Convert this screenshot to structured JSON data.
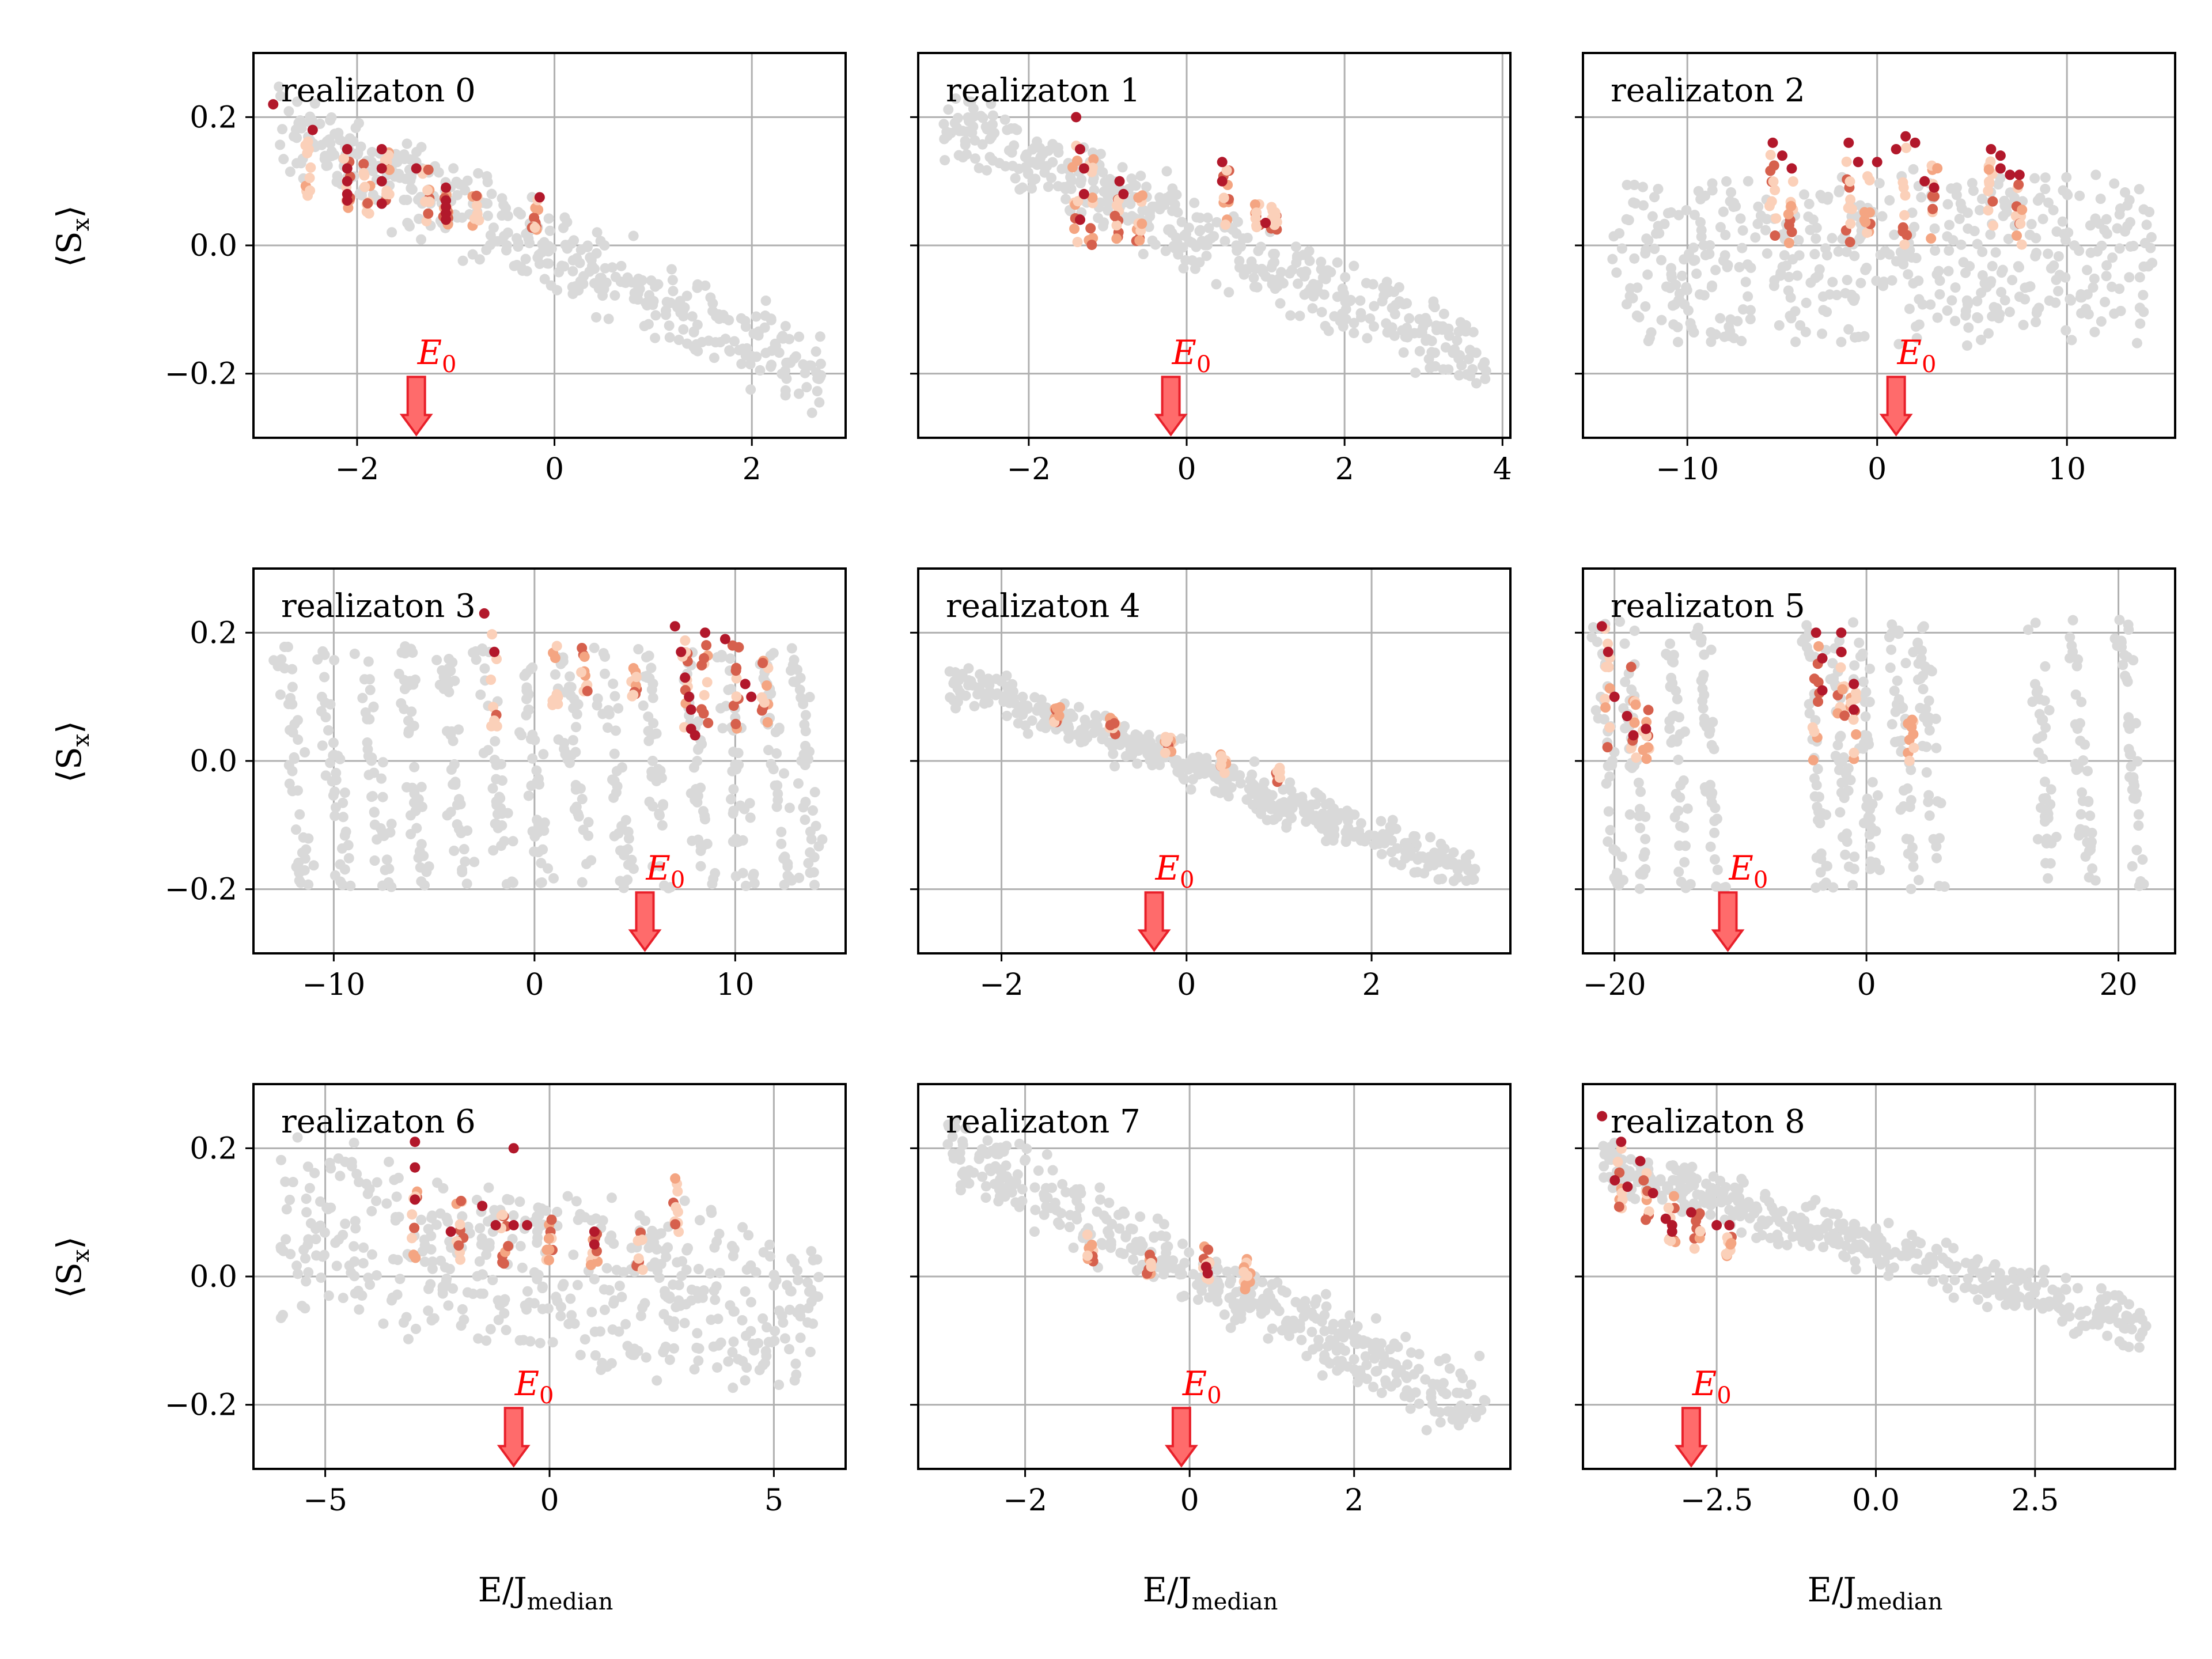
{
  "figure": {
    "xlabel": "E/J",
    "xlabel_sub": "median",
    "ylabel": "⟨S",
    "ylabel_sub": "x",
    "ylabel_close": "⟩",
    "marker_label": "E",
    "marker_label_sub": "0"
  },
  "colors": {
    "grid": "#b0b0b0",
    "background_points": "#d9d9d9",
    "light_points": "#fbd0b9",
    "mid_points": "#f4a582",
    "strong_points": "#d6604d",
    "dark_points": "#b2182b",
    "arrow_fill": "#ff6b6b",
    "arrow_edge": "#e8202a",
    "e0_text": "#ff0000"
  },
  "chart_data": [
    {
      "type": "scatter",
      "title": "realizaton 0",
      "xlim": [
        -3.05,
        2.95
      ],
      "ylim": [
        -0.3,
        0.3
      ],
      "xticks": [
        -2,
        0,
        2
      ],
      "xtick_labels": [
        "−2",
        "0",
        "2"
      ],
      "yticks": [
        -0.2,
        0.0,
        0.2
      ],
      "ytick_labels": [
        "−0.2",
        "0.0",
        "0.2"
      ],
      "e0": -1.4,
      "cloud": {
        "kind": "band",
        "x0": -2.8,
        "x1": 2.7,
        "y0": 0.19,
        "y1": -0.2,
        "width": 0.06
      },
      "highlight_columns": [
        {
          "x": -2.5,
          "ymin": 0.06,
          "ymax": 0.18
        },
        {
          "x": -2.1,
          "ymin": 0.04,
          "ymax": 0.15
        },
        {
          "x": -1.9,
          "ymin": 0.04,
          "ymax": 0.15
        },
        {
          "x": -1.7,
          "ymin": 0.03,
          "ymax": 0.15
        },
        {
          "x": -1.3,
          "ymin": 0.03,
          "ymax": 0.12
        },
        {
          "x": -1.1,
          "ymin": 0.03,
          "ymax": 0.1
        },
        {
          "x": -0.8,
          "ymin": 0.03,
          "ymax": 0.09
        },
        {
          "x": -0.2,
          "ymin": 0.02,
          "ymax": 0.08
        }
      ],
      "dark_points": [
        [
          -2.85,
          0.22
        ],
        [
          -2.45,
          0.18
        ],
        [
          -2.1,
          0.15
        ],
        [
          -2.1,
          0.12
        ],
        [
          -2.1,
          0.1
        ],
        [
          -2.1,
          0.08
        ],
        [
          -2.1,
          0.07
        ],
        [
          -1.75,
          0.15
        ],
        [
          -1.75,
          0.12
        ],
        [
          -1.75,
          0.1
        ],
        [
          -1.75,
          0.065
        ],
        [
          -1.4,
          0.12
        ],
        [
          -1.1,
          0.09
        ],
        [
          -1.1,
          0.07
        ],
        [
          -1.1,
          0.06
        ],
        [
          -1.1,
          0.05
        ],
        [
          -1.1,
          0.04
        ],
        [
          -0.15,
          0.075
        ]
      ]
    },
    {
      "type": "scatter",
      "title": "realizaton 1",
      "xlim": [
        -3.4,
        4.1
      ],
      "ylim": [
        -0.3,
        0.3
      ],
      "xticks": [
        -2,
        0,
        2,
        4
      ],
      "xtick_labels": [
        "−2",
        "0",
        "2",
        "4"
      ],
      "yticks": [
        -0.2,
        0.0,
        0.2
      ],
      "ytick_labels": [
        "",
        "",
        ""
      ],
      "e0": -0.2,
      "cloud": {
        "kind": "band",
        "x0": -3.1,
        "x1": 3.8,
        "y0": 0.19,
        "y1": -0.18,
        "width": 0.055
      },
      "highlight_columns": [
        {
          "x": -1.4,
          "ymin": 0.0,
          "ymax": 0.19
        },
        {
          "x": -1.2,
          "ymin": 0.0,
          "ymax": 0.14
        },
        {
          "x": -0.9,
          "ymin": 0.0,
          "ymax": 0.1
        },
        {
          "x": -0.6,
          "ymin": 0.0,
          "ymax": 0.08
        },
        {
          "x": 0.5,
          "ymin": 0.02,
          "ymax": 0.13
        },
        {
          "x": 0.9,
          "ymin": 0.02,
          "ymax": 0.07
        },
        {
          "x": 1.1,
          "ymin": 0.02,
          "ymax": 0.06
        }
      ],
      "dark_points": [
        [
          -1.4,
          0.2
        ],
        [
          -1.35,
          0.15
        ],
        [
          -1.3,
          0.12
        ],
        [
          -1.3,
          0.08
        ],
        [
          -1.35,
          0.04
        ],
        [
          -0.85,
          0.1
        ],
        [
          -0.8,
          0.08
        ],
        [
          0.45,
          0.13
        ],
        [
          0.45,
          0.1
        ],
        [
          1.0,
          0.035
        ]
      ]
    },
    {
      "type": "scatter",
      "title": "realizaton 2",
      "xlim": [
        -15.5,
        15.7
      ],
      "ylim": [
        -0.3,
        0.3
      ],
      "xticks": [
        -10,
        0,
        10
      ],
      "xtick_labels": [
        "−10",
        "0",
        "10"
      ],
      "yticks": [
        -0.2,
        0.0,
        0.2
      ],
      "ytick_labels": [
        "",
        "",
        ""
      ],
      "e0": 1.0,
      "cloud": {
        "kind": "blob",
        "x0": -14.0,
        "x1": 14.5,
        "ymin": -0.17,
        "ymax": 0.13
      },
      "highlight_columns": [
        {
          "x": -5.5,
          "ymin": 0.0,
          "ymax": 0.15
        },
        {
          "x": -4.5,
          "ymin": 0.0,
          "ymax": 0.12
        },
        {
          "x": -1.5,
          "ymin": 0.0,
          "ymax": 0.15
        },
        {
          "x": -0.5,
          "ymin": 0.0,
          "ymax": 0.12
        },
        {
          "x": 1.5,
          "ymin": 0.0,
          "ymax": 0.16
        },
        {
          "x": 3.0,
          "ymin": 0.0,
          "ymax": 0.13
        },
        {
          "x": 6.0,
          "ymin": 0.0,
          "ymax": 0.14
        },
        {
          "x": 7.5,
          "ymin": 0.0,
          "ymax": 0.12
        }
      ],
      "dark_points": [
        [
          -5.5,
          0.16
        ],
        [
          -5.0,
          0.14
        ],
        [
          -4.5,
          0.12
        ],
        [
          -1.5,
          0.16
        ],
        [
          -1.0,
          0.13
        ],
        [
          0.0,
          0.13
        ],
        [
          1.0,
          0.15
        ],
        [
          1.5,
          0.17
        ],
        [
          2.0,
          0.16
        ],
        [
          2.5,
          0.1
        ],
        [
          3.0,
          0.09
        ],
        [
          6.0,
          0.15
        ],
        [
          6.5,
          0.14
        ],
        [
          6.5,
          0.12
        ],
        [
          7.0,
          0.11
        ],
        [
          7.5,
          0.11
        ]
      ]
    },
    {
      "type": "scatter",
      "title": "realizaton 3",
      "xlim": [
        -14.0,
        15.5
      ],
      "ylim": [
        -0.3,
        0.3
      ],
      "xticks": [
        -10,
        0,
        10
      ],
      "xtick_labels": [
        "−10",
        "0",
        "10"
      ],
      "yticks": [
        -0.2,
        0.0,
        0.2
      ],
      "ytick_labels": [
        "−0.2",
        "0.0",
        "0.2"
      ],
      "e0": 5.5,
      "cloud": {
        "kind": "stripes",
        "centers": [
          -12.0,
          -10.0,
          -8.0,
          -6.0,
          -4.0,
          -2.0,
          0.0,
          2.0,
          4.0,
          6.0,
          8.0,
          10.0,
          12.0,
          13.5
        ],
        "ytop": 0.18,
        "ybot": -0.2,
        "tilt": 1.2,
        "width": 0.7
      },
      "highlight_columns": [
        {
          "x": -2.0,
          "ymin": 0.05,
          "ymax": 0.2
        },
        {
          "x": 1.0,
          "ymin": 0.08,
          "ymax": 0.18
        },
        {
          "x": 2.5,
          "ymin": 0.1,
          "ymax": 0.18
        },
        {
          "x": 5.0,
          "ymin": 0.1,
          "ymax": 0.15
        },
        {
          "x": 7.5,
          "ymin": 0.02,
          "ymax": 0.2
        },
        {
          "x": 8.5,
          "ymin": 0.05,
          "ymax": 0.2
        },
        {
          "x": 10.0,
          "ymin": 0.05,
          "ymax": 0.18
        },
        {
          "x": 11.5,
          "ymin": 0.06,
          "ymax": 0.16
        }
      ],
      "dark_points": [
        [
          -2.5,
          0.23
        ],
        [
          -2.0,
          0.17
        ],
        [
          7.0,
          0.21
        ],
        [
          7.3,
          0.17
        ],
        [
          7.5,
          0.13
        ],
        [
          7.7,
          0.1
        ],
        [
          7.8,
          0.08
        ],
        [
          7.8,
          0.05
        ],
        [
          8.0,
          0.04
        ],
        [
          8.5,
          0.2
        ],
        [
          9.5,
          0.19
        ],
        [
          10.5,
          0.12
        ],
        [
          10.8,
          0.1
        ]
      ]
    },
    {
      "type": "scatter",
      "title": "realizaton 4",
      "xlim": [
        -2.9,
        3.5
      ],
      "ylim": [
        -0.3,
        0.3
      ],
      "xticks": [
        -2,
        0,
        2
      ],
      "xtick_labels": [
        "−2",
        "0",
        "2"
      ],
      "yticks": [
        -0.2,
        0.0,
        0.2
      ],
      "ytick_labels": [
        "",
        "",
        ""
      ],
      "e0": -0.35,
      "cloud": {
        "kind": "band",
        "x0": -2.6,
        "x1": 3.2,
        "y0": 0.13,
        "y1": -0.18,
        "width": 0.03
      },
      "highlight_columns": [
        {
          "x": -1.4,
          "ymin": 0.06,
          "ymax": 0.09
        },
        {
          "x": -0.8,
          "ymin": 0.04,
          "ymax": 0.07
        },
        {
          "x": -0.2,
          "ymin": 0.01,
          "ymax": 0.04
        },
        {
          "x": 0.4,
          "ymin": -0.02,
          "ymax": 0.01
        },
        {
          "x": 1.0,
          "ymin": -0.04,
          "ymax": -0.01
        }
      ],
      "dark_points": []
    },
    {
      "type": "scatter",
      "title": "realizaton 5",
      "xlim": [
        -22.5,
        24.5
      ],
      "ylim": [
        -0.3,
        0.3
      ],
      "xticks": [
        -20,
        0,
        20
      ],
      "xtick_labels": [
        "−20",
        "0",
        "20"
      ],
      "yticks": [
        -0.2,
        0.0,
        0.2
      ],
      "ytick_labels": [
        "",
        "",
        ""
      ],
      "e0": -11.0,
      "cloud": {
        "kind": "stripes",
        "centers": [
          -20.5,
          -18.5,
          -15.0,
          -12.5,
          -4.0,
          -2.0,
          0.0,
          3.0,
          5.0,
          14.0,
          17.0,
          21.0
        ],
        "ytop": 0.22,
        "ybot": -0.2,
        "tilt": 1.5,
        "width": 0.9
      },
      "highlight_columns": [
        {
          "x": -20.5,
          "ymin": 0.0,
          "ymax": 0.21
        },
        {
          "x": -18.5,
          "ymin": 0.0,
          "ymax": 0.15
        },
        {
          "x": -17.5,
          "ymin": 0.0,
          "ymax": 0.08
        },
        {
          "x": -4.0,
          "ymin": 0.0,
          "ymax": 0.2
        },
        {
          "x": -2.0,
          "ymin": 0.0,
          "ymax": 0.17
        },
        {
          "x": -1.0,
          "ymin": 0.0,
          "ymax": 0.13
        },
        {
          "x": 3.5,
          "ymin": 0.0,
          "ymax": 0.1
        }
      ],
      "dark_points": [
        [
          -21.0,
          0.21
        ],
        [
          -20.5,
          0.17
        ],
        [
          -20.0,
          0.1
        ],
        [
          -19.0,
          0.07
        ],
        [
          -18.5,
          0.04
        ],
        [
          -17.5,
          0.05
        ],
        [
          -4.0,
          0.2
        ],
        [
          -3.5,
          0.16
        ],
        [
          -3.5,
          0.11
        ],
        [
          -2.0,
          0.2
        ],
        [
          -2.0,
          0.17
        ],
        [
          -1.0,
          0.12
        ],
        [
          -1.0,
          0.08
        ]
      ]
    },
    {
      "type": "scatter",
      "title": "realizaton 6",
      "xlim": [
        -6.6,
        6.6
      ],
      "ylim": [
        -0.3,
        0.3
      ],
      "xticks": [
        -5,
        0,
        5
      ],
      "xtick_labels": [
        "−5",
        "0",
        "5"
      ],
      "yticks": [
        -0.2,
        0.0,
        0.2
      ],
      "ytick_labels": [
        "−0.2",
        "0.0",
        "0.2"
      ],
      "e0": -0.8,
      "cloud": {
        "kind": "blob",
        "x0": -6.0,
        "x1": 6.0,
        "ymin": -0.14,
        "ymax": 0.16,
        "slope": -0.012
      },
      "highlight_columns": [
        {
          "x": -3.0,
          "ymin": 0.02,
          "ymax": 0.14
        },
        {
          "x": -2.0,
          "ymin": 0.02,
          "ymax": 0.12
        },
        {
          "x": -1.0,
          "ymin": 0.02,
          "ymax": 0.1
        },
        {
          "x": 0.0,
          "ymin": 0.01,
          "ymax": 0.09
        },
        {
          "x": 1.0,
          "ymin": 0.01,
          "ymax": 0.08
        },
        {
          "x": 2.0,
          "ymin": 0.01,
          "ymax": 0.07
        },
        {
          "x": 2.8,
          "ymin": 0.05,
          "ymax": 0.18
        }
      ],
      "dark_points": [
        [
          -3.0,
          0.21
        ],
        [
          -3.0,
          0.17
        ],
        [
          -3.0,
          0.12
        ],
        [
          -2.2,
          0.07
        ],
        [
          -1.5,
          0.11
        ],
        [
          -1.2,
          0.08
        ],
        [
          -0.8,
          0.2
        ],
        [
          -0.8,
          0.08
        ],
        [
          -0.5,
          0.08
        ],
        [
          1.0,
          0.07
        ],
        [
          1.0,
          0.05
        ]
      ]
    },
    {
      "type": "scatter",
      "title": "realizaton 7",
      "xlim": [
        -3.3,
        3.9
      ],
      "ylim": [
        -0.3,
        0.3
      ],
      "xticks": [
        -2,
        0,
        2
      ],
      "xtick_labels": [
        "−2",
        "0",
        "2"
      ],
      "yticks": [
        -0.2,
        0.0,
        0.2
      ],
      "ytick_labels": [
        "",
        "",
        ""
      ],
      "e0": -0.1,
      "cloud": {
        "kind": "band",
        "x0": -3.0,
        "x1": 3.6,
        "y0": 0.2,
        "y1": -0.21,
        "width": 0.05
      },
      "highlight_columns": [
        {
          "x": -1.2,
          "ymin": 0.02,
          "ymax": 0.07
        },
        {
          "x": -0.5,
          "ymin": 0.0,
          "ymax": 0.04
        },
        {
          "x": 0.2,
          "ymin": -0.02,
          "ymax": 0.05
        },
        {
          "x": 0.7,
          "ymin": -0.02,
          "ymax": 0.03
        }
      ],
      "dark_points": [
        [
          0.2,
          0.015
        ],
        [
          0.22,
          0.005
        ]
      ]
    },
    {
      "type": "scatter",
      "title": "realizaton 8",
      "xlim": [
        -4.6,
        4.7
      ],
      "ylim": [
        -0.3,
        0.3
      ],
      "xticks": [
        -2.5,
        0.0,
        2.5
      ],
      "xtick_labels": [
        "−2.5",
        "0.0",
        "2.5"
      ],
      "yticks": [
        -0.2,
        0.0,
        0.2
      ],
      "ytick_labels": [
        "",
        "",
        ""
      ],
      "e0": -2.9,
      "cloud": {
        "kind": "band",
        "x0": -4.3,
        "x1": 4.3,
        "y0": 0.17,
        "y1": -0.08,
        "width": 0.035
      },
      "highlight_columns": [
        {
          "x": -4.0,
          "ymin": 0.1,
          "ymax": 0.2
        },
        {
          "x": -3.6,
          "ymin": 0.07,
          "ymax": 0.17
        },
        {
          "x": -3.2,
          "ymin": 0.05,
          "ymax": 0.13
        },
        {
          "x": -2.8,
          "ymin": 0.04,
          "ymax": 0.1
        },
        {
          "x": -2.3,
          "ymin": 0.03,
          "ymax": 0.09
        }
      ],
      "dark_points": [
        [
          -4.3,
          0.25
        ],
        [
          -4.0,
          0.21
        ],
        [
          -4.1,
          0.15
        ],
        [
          -3.9,
          0.14
        ],
        [
          -3.7,
          0.18
        ],
        [
          -3.5,
          0.13
        ],
        [
          -3.3,
          0.09
        ],
        [
          -3.2,
          0.08
        ],
        [
          -3.2,
          0.07
        ],
        [
          -2.9,
          0.1
        ],
        [
          -2.5,
          0.08
        ],
        [
          -2.3,
          0.08
        ]
      ]
    }
  ]
}
